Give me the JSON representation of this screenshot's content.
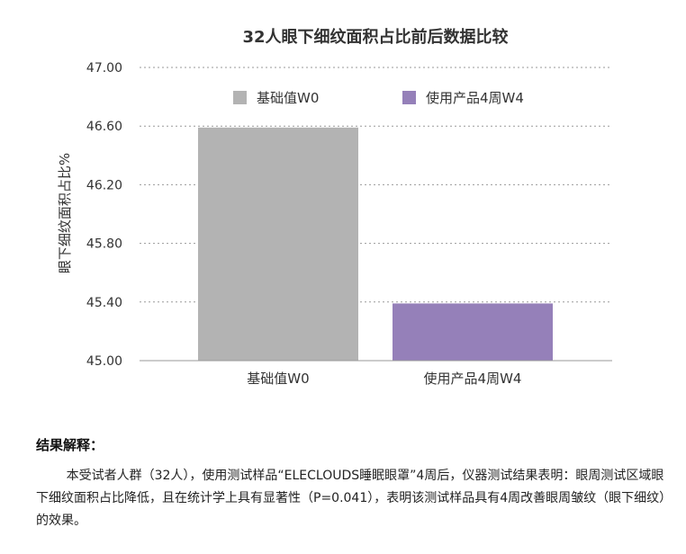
{
  "chart_data": {
    "type": "bar",
    "title": "32人眼下细纹面积占比前后数据比较",
    "xlabel": "",
    "ylabel": "眼下细纹面积占比%",
    "ylim": [
      45.0,
      47.0
    ],
    "yticks": [
      "45.00",
      "45.40",
      "45.80",
      "46.20",
      "46.60",
      "47.00"
    ],
    "categories": [
      "基础值W0",
      "使用产品4周W4"
    ],
    "values": [
      46.59,
      45.39
    ],
    "colors": [
      "#b3b3b3",
      "#9580b9"
    ],
    "legend": {
      "position": "top",
      "entries": [
        {
          "label": "基础值W0",
          "color": "#b3b3b3"
        },
        {
          "label": "使用产品4周W4",
          "color": "#9580b9"
        }
      ]
    },
    "grid": true
  },
  "conclusion": {
    "heading": "结果解释：",
    "body": "本受试者人群（32人），使用测试样品“ELECLOUDS睡眠眼罩”4周后，仪器测试结果表明：眼周测试区域眼下细纹面积占比降低，且在统计学上具有显著性（P=0.041），表明该测试样品具有4周改善眼周皱纹（眼下细纹）的效果。"
  }
}
